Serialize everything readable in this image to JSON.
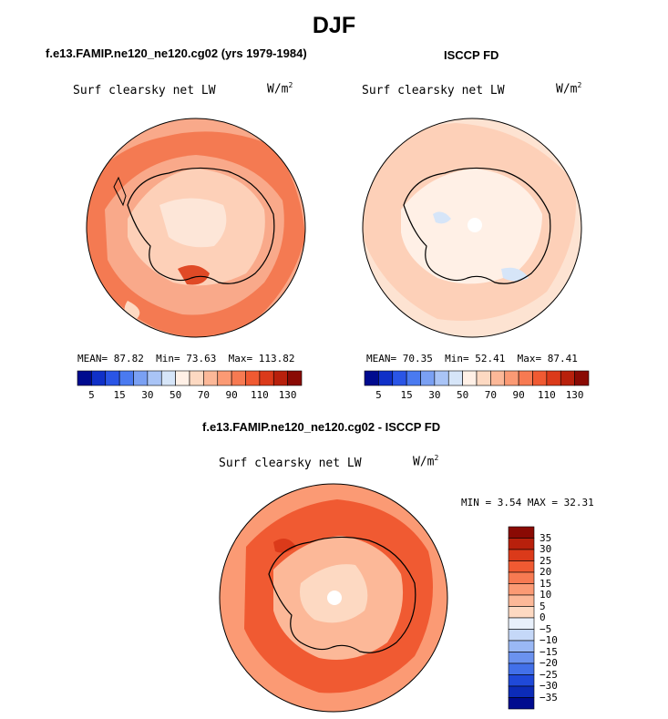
{
  "title": "DJF",
  "left_panel": {
    "subtitle": "f.e13.FAMIP.ne120_ne120.cg02 (yrs 1979-1984)",
    "variable": "Surf clearsky net LW",
    "units_base": "W/m",
    "units_exp": "2",
    "mean_label": "MEAN=",
    "mean_value": "87.82",
    "min_label": "Min=",
    "min_value": "73.63",
    "max_label": "Max=",
    "max_value": "113.82"
  },
  "right_panel": {
    "subtitle": "ISCCP FD",
    "variable": "Surf clearsky net LW",
    "units_base": "W/m",
    "units_exp": "2",
    "mean_label": "MEAN=",
    "mean_value": "70.35",
    "min_label": "Min=",
    "min_value": "52.41",
    "max_label": "Max=",
    "max_value": "87.41"
  },
  "diff_panel": {
    "subtitle": "f.e13.FAMIP.ne120_ne120.cg02 - ISCCP FD",
    "variable": "Surf clearsky net LW",
    "units_base": "W/m",
    "units_exp": "2",
    "min_label": "MIN =",
    "min_value": "3.54",
    "max_label": "MAX =",
    "max_value": "32.31"
  },
  "top_colorbar": {
    "labels": [
      "5",
      "15",
      "30",
      "50",
      "70",
      "90",
      "110",
      "130"
    ],
    "colors": [
      "#000b8f",
      "#1030c8",
      "#2a55e6",
      "#4a7af0",
      "#7aa0f3",
      "#a9c4f6",
      "#d6e5f8",
      "#fff0e6",
      "#fdd9c2",
      "#fcb898",
      "#fb9a74",
      "#f77a52",
      "#f05a32",
      "#db3a1a",
      "#b8200c",
      "#8a0a04"
    ]
  },
  "diff_colorbar": {
    "labels": [
      "35",
      "30",
      "25",
      "20",
      "15",
      "10",
      "5",
      "0",
      "−5",
      "−10",
      "−15",
      "−20",
      "−25",
      "−30",
      "−35"
    ],
    "colors": [
      "#8a0a04",
      "#b8200c",
      "#db3a1a",
      "#f05a32",
      "#f77a52",
      "#fb9a74",
      "#fcb898",
      "#fdd9c2",
      "#e8f0fb",
      "#c5d8f8",
      "#9ab8f5",
      "#6b92ef",
      "#4270e9",
      "#1f49d9",
      "#0c2bb8",
      "#000b8f"
    ]
  }
}
